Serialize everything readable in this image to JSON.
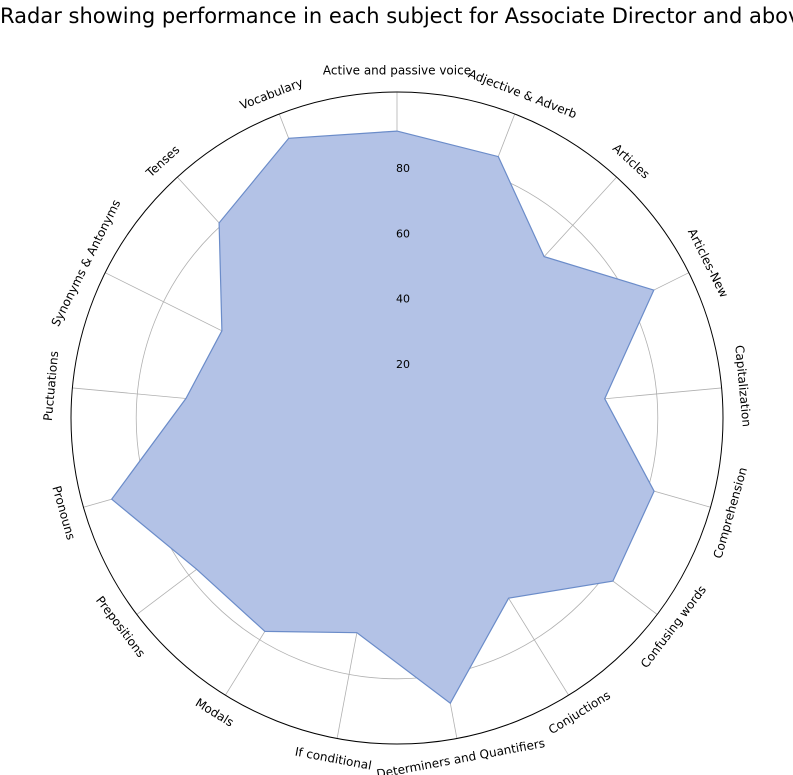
{
  "chart_data": {
    "type": "radar",
    "title": "Radar showing performance in each subject for Associate Director and above",
    "categories": [
      "Active and passive voice",
      "Adjective & Adverb",
      "Articles",
      "Articles-New",
      "Capitalization",
      "Comprehension",
      "Confusing words",
      "Conjuctions",
      "Determiners and Quantifiers",
      "If conditional",
      "Modals",
      "Prepositions",
      "Pronouns",
      "Puctuations",
      "Synonyms & Antonyms",
      "Tenses",
      "Vocabulary"
    ],
    "values": [
      88,
      86,
      67,
      88,
      64,
      82,
      83,
      65,
      89,
      67,
      77,
      77,
      91,
      65,
      60,
      81,
      92
    ],
    "r_ticks": [
      20,
      40,
      60,
      80
    ],
    "rlim": [
      0,
      100
    ],
    "grid": true,
    "colors": {
      "fill": "#b3c2e6",
      "stroke": "#6b8cc9"
    }
  }
}
